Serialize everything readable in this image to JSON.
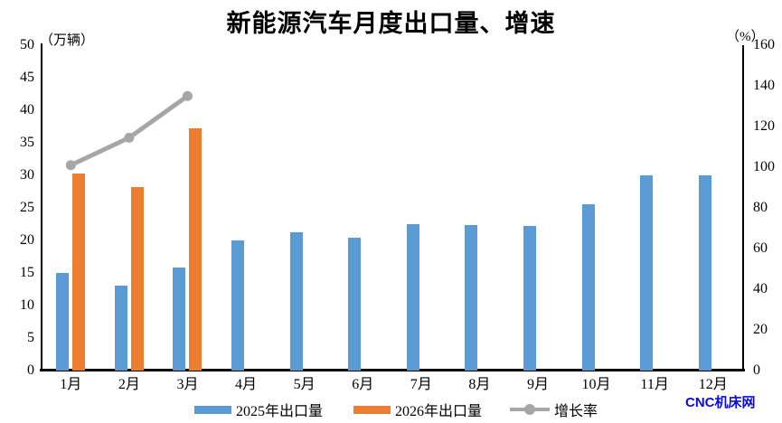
{
  "title": "新能源汽车月度出口量、增速",
  "left_axis": {
    "unit": "（万辆）",
    "ticks": [
      50,
      45,
      40,
      35,
      30,
      25,
      20,
      15,
      10,
      5,
      0
    ]
  },
  "right_axis": {
    "unit": "（%）",
    "ticks": [
      160,
      140,
      120,
      100,
      80,
      60,
      40,
      20,
      0
    ]
  },
  "x_axis": {
    "labels": [
      "1月",
      "2月",
      "3月",
      "4月",
      "5月",
      "6月",
      "7月",
      "8月",
      "9月",
      "10月",
      "11月",
      "12月"
    ]
  },
  "legend": [
    {
      "label": "2025年出口量",
      "color": "#5B9BD5",
      "marker": "bar"
    },
    {
      "label": "2026年出口量",
      "color": "#ED7D31",
      "marker": "bar"
    },
    {
      "label": "增长率",
      "color": "#A6A6A6",
      "marker": "line"
    }
  ],
  "watermark": {
    "text": "CNC机床网",
    "color": "#0A0AE8"
  },
  "colors": {
    "bar_2025": "#5B9BD5",
    "bar_2026": "#ED7D31",
    "growth_line": "#A6A6A6",
    "axis": "#000000",
    "background": "#FFFFFF"
  },
  "chart_data": {
    "type": "bar",
    "title": "新能源汽车月度出口量、增速",
    "categories": [
      "1月",
      "2月",
      "3月",
      "4月",
      "5月",
      "6月",
      "7月",
      "8月",
      "9月",
      "10月",
      "11月",
      "12月"
    ],
    "series": [
      {
        "name": "2025年出口量",
        "type": "bar",
        "axis": "left",
        "color": "#5B9BD5",
        "values": [
          15.0,
          13.1,
          15.8,
          20.0,
          21.2,
          20.4,
          22.5,
          22.3,
          22.2,
          25.6,
          30.0,
          30.0
        ]
      },
      {
        "name": "2026年出口量",
        "type": "bar",
        "axis": "left",
        "color": "#ED7D31",
        "values": [
          30.3,
          28.2,
          37.2,
          null,
          null,
          null,
          null,
          null,
          null,
          null,
          null,
          null
        ]
      },
      {
        "name": "增长率",
        "type": "line",
        "axis": "right",
        "color": "#A6A6A6",
        "values": [
          101,
          114.5,
          135,
          null,
          null,
          null,
          null,
          null,
          null,
          null,
          null,
          null
        ]
      }
    ],
    "left_ylabel": "（万辆）",
    "left_ylim": [
      0,
      50
    ],
    "left_step": 5,
    "right_ylabel": "（%）",
    "right_ylim": [
      0,
      160
    ],
    "right_step": 20,
    "grid": false,
    "legend_position": "bottom"
  }
}
